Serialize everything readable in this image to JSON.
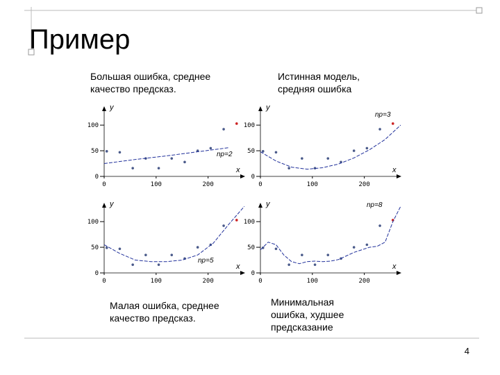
{
  "slide": {
    "title": "Пример",
    "page_number": "4",
    "captions": [
      [
        "Большая ошибка, среднее",
        "качество предсказ."
      ],
      [
        "Истинная модель,",
        "средняя ошибка"
      ],
      [
        "Малая ошибка, среднее",
        "качество предсказ."
      ],
      [
        "Минимальная",
        "ошибка, худшее",
        "предсказание"
      ]
    ]
  },
  "chart_data": [
    {
      "type": "scatter",
      "annotation": "np=2",
      "x_label": "x",
      "y_label": "y",
      "xlim": [
        0,
        270
      ],
      "ylim": [
        0,
        130
      ],
      "xticks": [
        0,
        100,
        200
      ],
      "yticks": [
        0,
        50,
        100
      ],
      "series": [
        {
          "mode": "points",
          "color": "#4a5a8a",
          "x": [
            5,
            30,
            55,
            80,
            105,
            130,
            155,
            180,
            205,
            230
          ],
          "values": [
            49,
            47,
            16,
            35,
            16,
            35,
            28,
            50,
            55,
            92
          ]
        },
        {
          "mode": "points",
          "color": "#cc2222",
          "x": [
            255
          ],
          "values": [
            103
          ]
        },
        {
          "mode": "line",
          "color": "#1f2f9a",
          "x": [
            0,
            60,
            120,
            180,
            240
          ],
          "values": [
            25,
            33,
            40,
            48,
            56
          ]
        }
      ]
    },
    {
      "type": "scatter",
      "annotation": "np=3",
      "x_label": "x",
      "y_label": "y",
      "xlim": [
        0,
        270
      ],
      "ylim": [
        0,
        130
      ],
      "xticks": [
        0,
        100,
        200
      ],
      "yticks": [
        0,
        50,
        100
      ],
      "series": [
        {
          "mode": "points",
          "color": "#4a5a8a",
          "x": [
            5,
            30,
            55,
            80,
            105,
            130,
            155,
            180,
            205,
            230
          ],
          "values": [
            49,
            47,
            16,
            35,
            16,
            35,
            28,
            50,
            55,
            92
          ]
        },
        {
          "mode": "points",
          "color": "#cc2222",
          "x": [
            255
          ],
          "values": [
            103
          ]
        },
        {
          "mode": "line",
          "color": "#1f2f9a",
          "x": [
            0,
            30,
            60,
            90,
            120,
            150,
            180,
            210,
            240,
            270
          ],
          "values": [
            48,
            30,
            18,
            14,
            17,
            24,
            36,
            52,
            72,
            100
          ]
        }
      ]
    },
    {
      "type": "scatter",
      "annotation": "np=5",
      "x_label": "x",
      "y_label": "y",
      "xlim": [
        0,
        270
      ],
      "ylim": [
        0,
        130
      ],
      "xticks": [
        0,
        100,
        200
      ],
      "yticks": [
        0,
        50,
        100
      ],
      "series": [
        {
          "mode": "points",
          "color": "#4a5a8a",
          "x": [
            5,
            30,
            55,
            80,
            105,
            130,
            155,
            180,
            205,
            230
          ],
          "values": [
            49,
            47,
            16,
            35,
            16,
            35,
            28,
            50,
            55,
            92
          ]
        },
        {
          "mode": "points",
          "color": "#cc2222",
          "x": [
            255
          ],
          "values": [
            103
          ]
        },
        {
          "mode": "line",
          "color": "#1f2f9a",
          "x": [
            0,
            30,
            60,
            90,
            120,
            150,
            180,
            210,
            240,
            270
          ],
          "values": [
            55,
            38,
            25,
            22,
            22,
            25,
            35,
            58,
            95,
            130
          ]
        }
      ]
    },
    {
      "type": "scatter",
      "annotation": "np=8",
      "x_label": "x",
      "y_label": "y",
      "xlim": [
        0,
        270
      ],
      "ylim": [
        0,
        130
      ],
      "xticks": [
        0,
        100,
        200
      ],
      "yticks": [
        0,
        50,
        100
      ],
      "series": [
        {
          "mode": "points",
          "color": "#4a5a8a",
          "x": [
            5,
            30,
            55,
            80,
            105,
            130,
            155,
            180,
            205,
            230
          ],
          "values": [
            49,
            47,
            16,
            35,
            16,
            35,
            28,
            50,
            55,
            92
          ]
        },
        {
          "mode": "points",
          "color": "#cc2222",
          "x": [
            255
          ],
          "values": [
            103
          ]
        },
        {
          "mode": "line",
          "color": "#1f2f9a",
          "x": [
            0,
            15,
            30,
            45,
            60,
            75,
            90,
            105,
            120,
            135,
            150,
            165,
            180,
            195,
            210,
            225,
            240,
            255,
            270
          ],
          "values": [
            45,
            60,
            55,
            35,
            22,
            18,
            22,
            23,
            22,
            23,
            26,
            33,
            40,
            45,
            50,
            52,
            60,
            100,
            130
          ]
        }
      ]
    }
  ]
}
